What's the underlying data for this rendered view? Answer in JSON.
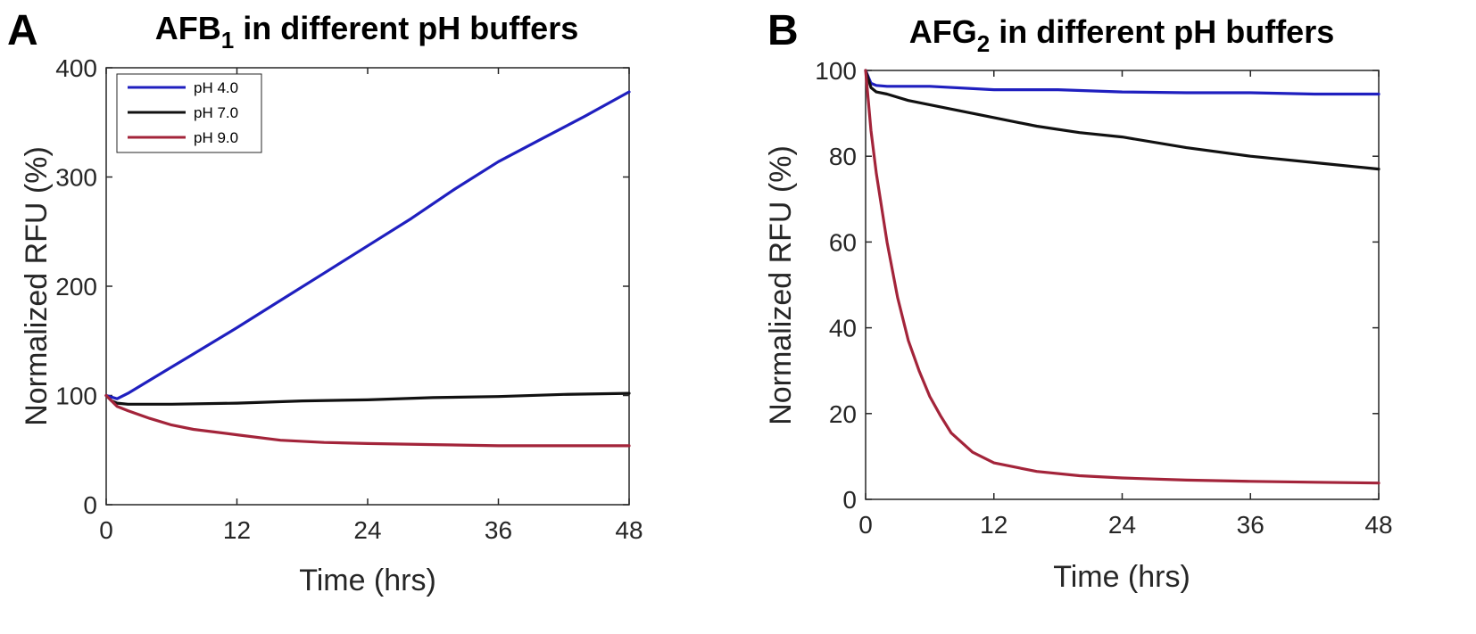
{
  "chart_data": [
    {
      "type": "line",
      "panel_label": "A",
      "title": "AFB",
      "title_subscript": "1",
      "title_rest": " in different pH buffers",
      "xlabel": "Time (hrs)",
      "ylabel": "Normalized RFU (%)",
      "xlim": [
        0,
        48
      ],
      "ylim": [
        0,
        400
      ],
      "xticks": [
        0,
        12,
        24,
        36,
        48
      ],
      "yticks": [
        0,
        100,
        200,
        300,
        400
      ],
      "grid": false,
      "legend_position": "top-left",
      "series": [
        {
          "name": "pH 4.0",
          "color": "#1f1fbf",
          "x": [
            0,
            1,
            2,
            4,
            6,
            8,
            12,
            16,
            20,
            24,
            28,
            32,
            36,
            40,
            44,
            48
          ],
          "y": [
            100,
            97,
            102,
            114,
            126,
            138,
            162,
            187,
            212,
            237,
            262,
            289,
            314,
            335,
            356,
            378
          ]
        },
        {
          "name": "pH 7.0",
          "color": "#111111",
          "x": [
            0,
            0.5,
            1,
            2,
            6,
            12,
            18,
            24,
            30,
            36,
            42,
            48
          ],
          "y": [
            100,
            95,
            93,
            92,
            92,
            93,
            95,
            96,
            98,
            99,
            101,
            102
          ]
        },
        {
          "name": "pH 9.0",
          "color": "#a3243a",
          "x": [
            0,
            1,
            2,
            4,
            6,
            8,
            12,
            16,
            20,
            24,
            30,
            36,
            42,
            48
          ],
          "y": [
            100,
            90,
            86,
            79,
            73,
            69,
            64,
            59,
            57,
            56,
            55,
            54,
            54,
            54
          ]
        }
      ]
    },
    {
      "type": "line",
      "panel_label": "B",
      "title": "AFG",
      "title_subscript": "2",
      "title_rest": " in different pH buffers",
      "xlabel": "Time (hrs)",
      "ylabel": "Normalized RFU (%)",
      "xlim": [
        0,
        48
      ],
      "ylim": [
        0,
        100
      ],
      "xticks": [
        0,
        12,
        24,
        36,
        48
      ],
      "yticks": [
        0,
        20,
        40,
        60,
        80,
        100
      ],
      "grid": false,
      "series": [
        {
          "name": "pH 4.0",
          "color": "#1f1fbf",
          "x": [
            0,
            0.5,
            1,
            2,
            6,
            12,
            18,
            24,
            30,
            36,
            42,
            48
          ],
          "y": [
            100,
            97,
            96.5,
            96.3,
            96.3,
            95.5,
            95.5,
            95,
            94.8,
            94.8,
            94.5,
            94.5
          ]
        },
        {
          "name": "pH 7.0",
          "color": "#111111",
          "x": [
            0,
            0.5,
            1,
            2,
            4,
            8,
            12,
            16,
            20,
            24,
            30,
            36,
            42,
            48
          ],
          "y": [
            100,
            96,
            95,
            94.5,
            93,
            91,
            89,
            87,
            85.5,
            84.5,
            82,
            80,
            78.5,
            77
          ]
        },
        {
          "name": "pH 9.0",
          "color": "#a3243a",
          "x": [
            0,
            0.5,
            1,
            2,
            3,
            4,
            5,
            6,
            7,
            8,
            10,
            12,
            16,
            20,
            24,
            30,
            36,
            42,
            48
          ],
          "y": [
            100,
            86,
            76,
            60,
            47,
            37,
            30,
            24,
            19.5,
            15.5,
            11,
            8.5,
            6.5,
            5.5,
            5,
            4.5,
            4.2,
            4,
            3.8
          ]
        }
      ]
    }
  ]
}
